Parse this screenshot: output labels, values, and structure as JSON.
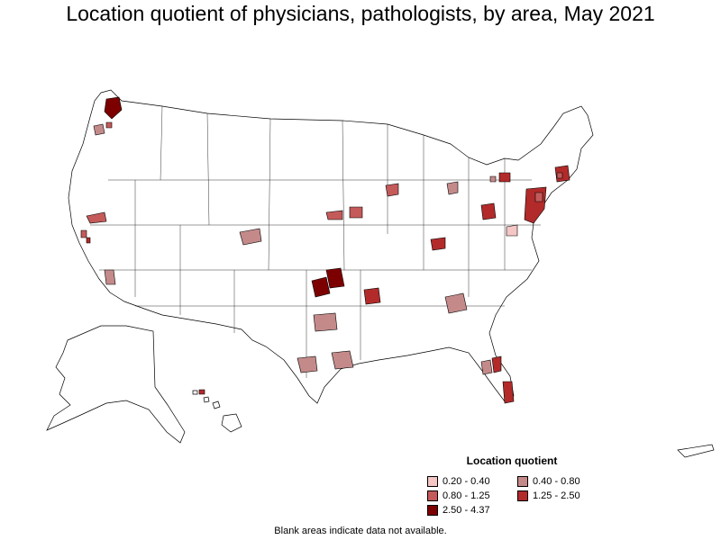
{
  "title": "Location quotient of physicians, pathologists, by area, May 2021",
  "legend": {
    "title": "Location quotient",
    "items": [
      {
        "label": "0.20 - 0.40",
        "color": "#f4c6c6"
      },
      {
        "label": "0.40 - 0.80",
        "color": "#c48a8a"
      },
      {
        "label": "0.80 - 1.25",
        "color": "#c45a5a"
      },
      {
        "label": "1.25 - 2.50",
        "color": "#b22a2a"
      },
      {
        "label": "2.50 - 4.37",
        "color": "#7d0000"
      }
    ]
  },
  "footnote": "Blank areas indicate data not available."
}
